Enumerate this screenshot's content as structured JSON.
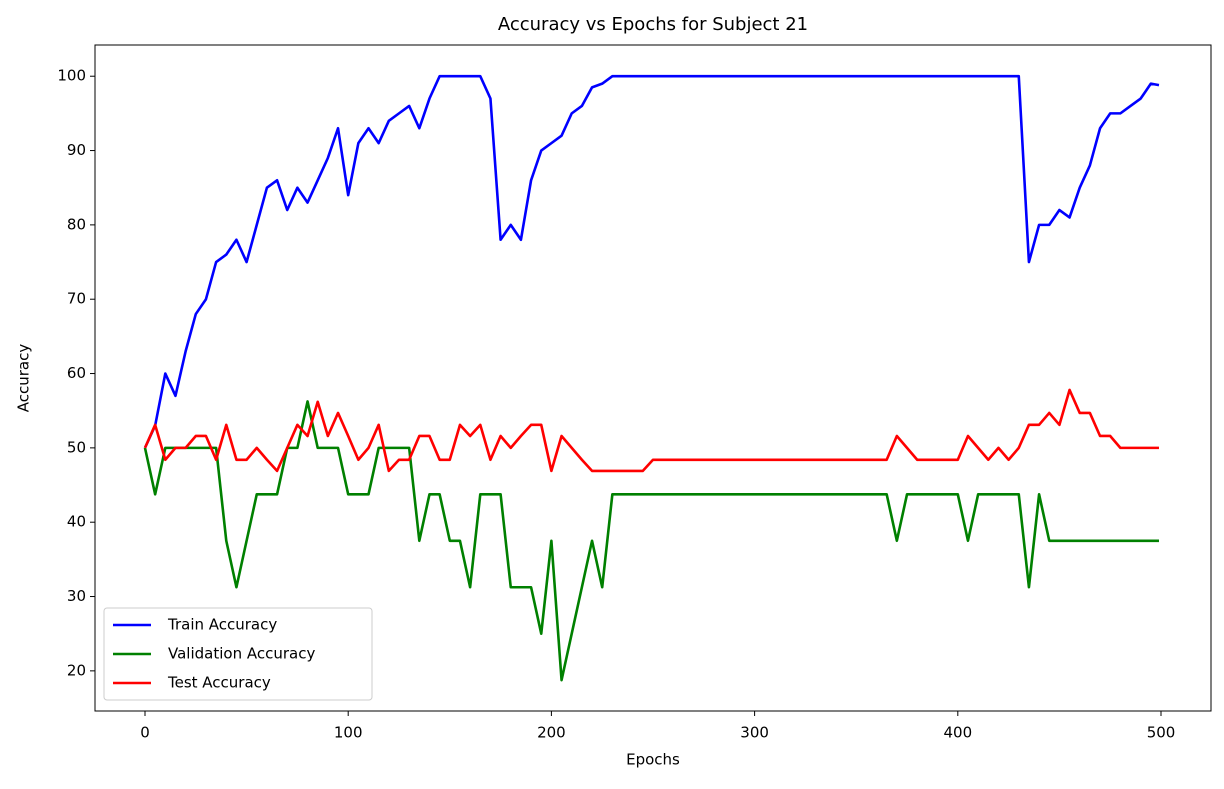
{
  "chart_data": {
    "type": "line",
    "title": "Accuracy vs Epochs for Subject 21",
    "xlabel": "Epochs",
    "ylabel": "Accuracy",
    "x": [
      0,
      5,
      10,
      15,
      20,
      25,
      30,
      35,
      40,
      45,
      50,
      55,
      60,
      65,
      70,
      75,
      80,
      85,
      90,
      95,
      100,
      105,
      110,
      115,
      120,
      125,
      130,
      135,
      140,
      145,
      150,
      155,
      160,
      165,
      170,
      175,
      180,
      185,
      190,
      195,
      200,
      205,
      210,
      215,
      220,
      225,
      230,
      235,
      240,
      245,
      250,
      255,
      260,
      265,
      270,
      275,
      280,
      285,
      290,
      295,
      300,
      305,
      310,
      315,
      320,
      325,
      330,
      335,
      340,
      345,
      350,
      355,
      360,
      365,
      370,
      375,
      380,
      385,
      390,
      395,
      400,
      405,
      410,
      415,
      420,
      425,
      430,
      435,
      440,
      445,
      450,
      455,
      460,
      465,
      470,
      475,
      480,
      485,
      490,
      495,
      499
    ],
    "series": [
      {
        "name": "Train Accuracy",
        "color": "#0000ff",
        "values": [
          50,
          53,
          60,
          57,
          63,
          68,
          70,
          75,
          76,
          78,
          75,
          80,
          85,
          86,
          82,
          85,
          83,
          86,
          89,
          93,
          84,
          91,
          93,
          91,
          94,
          95,
          96,
          93,
          97,
          100,
          100,
          100,
          100,
          100,
          97,
          78,
          80,
          78,
          86,
          90,
          91,
          92,
          95,
          96,
          98.5,
          99,
          100,
          100,
          100,
          100,
          100,
          100,
          100,
          100,
          100,
          100,
          100,
          100,
          100,
          100,
          100,
          100,
          100,
          100,
          100,
          100,
          100,
          100,
          100,
          100,
          100,
          100,
          100,
          100,
          100,
          100,
          100,
          100,
          100,
          100,
          100,
          100,
          100,
          100,
          100,
          100,
          100,
          75,
          80,
          80,
          82,
          81,
          85,
          88,
          93,
          95,
          95,
          96,
          97,
          99,
          98.8
        ]
      },
      {
        "name": "Validation Accuracy",
        "color": "#008000",
        "values": [
          50,
          43.75,
          50,
          50,
          50,
          50,
          50,
          50,
          37.5,
          31.25,
          37.5,
          43.75,
          43.75,
          43.75,
          50,
          50,
          56.25,
          50,
          50,
          50,
          43.75,
          43.75,
          43.75,
          50,
          50,
          50,
          50,
          37.5,
          43.75,
          43.75,
          37.5,
          37.5,
          31.25,
          43.75,
          43.75,
          43.75,
          31.25,
          31.25,
          31.25,
          25,
          37.5,
          18.75,
          25,
          31.25,
          37.5,
          31.25,
          43.75,
          43.75,
          43.75,
          43.75,
          43.75,
          43.75,
          43.75,
          43.75,
          43.75,
          43.75,
          43.75,
          43.75,
          43.75,
          43.75,
          43.75,
          43.75,
          43.75,
          43.75,
          43.75,
          43.75,
          43.75,
          43.75,
          43.75,
          43.75,
          43.75,
          43.75,
          43.75,
          43.75,
          37.5,
          43.75,
          43.75,
          43.75,
          43.75,
          43.75,
          43.75,
          37.5,
          43.75,
          43.75,
          43.75,
          43.75,
          43.75,
          31.25,
          43.75,
          37.5,
          37.5,
          37.5,
          37.5,
          37.5,
          37.5,
          37.5,
          37.5,
          37.5,
          37.5,
          37.5,
          37.5
        ]
      },
      {
        "name": "Test Accuracy",
        "color": "#ff0000",
        "values": [
          50,
          53.1,
          48.4,
          50,
          50,
          51.6,
          51.6,
          48.4,
          53.1,
          48.4,
          48.4,
          50,
          48.4,
          46.9,
          50,
          53.1,
          51.6,
          56.2,
          51.6,
          54.7,
          51.6,
          48.4,
          50,
          53.1,
          46.9,
          48.4,
          48.4,
          51.6,
          51.6,
          48.4,
          48.4,
          53.1,
          51.6,
          53.1,
          48.4,
          51.6,
          50,
          51.6,
          53.1,
          53.1,
          46.9,
          51.6,
          50,
          48.4,
          46.9,
          46.9,
          46.9,
          46.9,
          46.9,
          46.9,
          48.4,
          48.4,
          48.4,
          48.4,
          48.4,
          48.4,
          48.4,
          48.4,
          48.4,
          48.4,
          48.4,
          48.4,
          48.4,
          48.4,
          48.4,
          48.4,
          48.4,
          48.4,
          48.4,
          48.4,
          48.4,
          48.4,
          48.4,
          48.4,
          51.6,
          50,
          48.4,
          48.4,
          48.4,
          48.4,
          48.4,
          51.6,
          50,
          48.4,
          50,
          48.4,
          50,
          53.1,
          53.1,
          54.7,
          53.1,
          57.8,
          54.7,
          54.7,
          51.6,
          51.6,
          50,
          50,
          50,
          50,
          50
        ]
      }
    ],
    "xlim": [
      -24.6,
      524.6
    ],
    "ylim": [
      14.6,
      104.2
    ],
    "xticks": [
      0,
      100,
      200,
      300,
      400,
      500
    ],
    "yticks": [
      20,
      30,
      40,
      50,
      60,
      70,
      80,
      90,
      100
    ],
    "legend": "lower left",
    "grid": false
  }
}
